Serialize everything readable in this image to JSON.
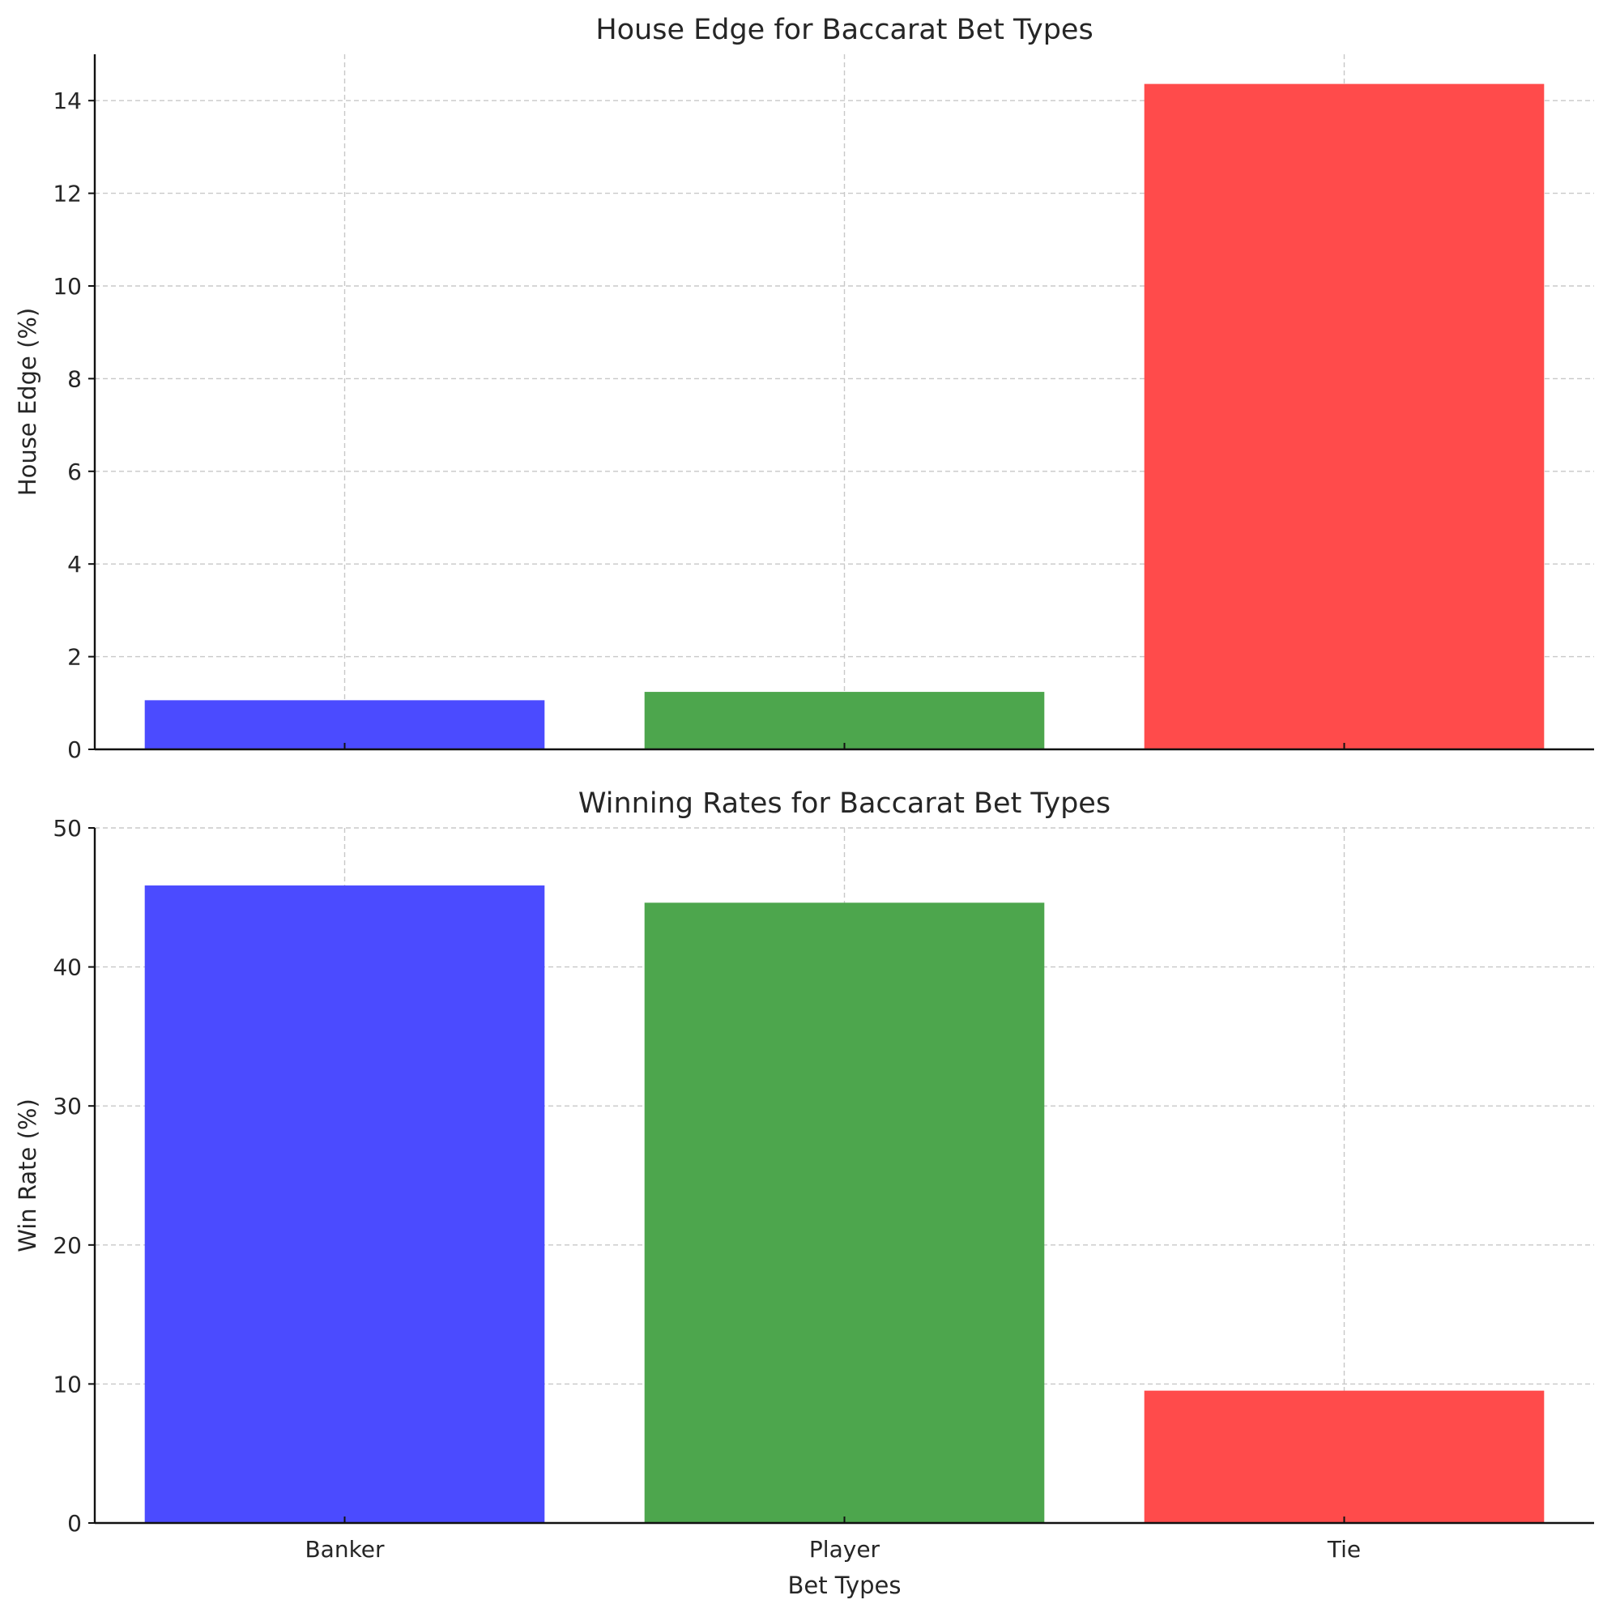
{
  "chart_data": [
    {
      "type": "bar",
      "title": "House Edge for Baccarat Bet Types",
      "xlabel": "",
      "ylabel": "House Edge (%)",
      "categories": [
        "Banker",
        "Player",
        "Tie"
      ],
      "show_x_tick_labels": false,
      "values": [
        1.06,
        1.24,
        14.36
      ],
      "colors": [
        "#4b4bff",
        "#4da64d",
        "#ff4b4b"
      ],
      "ylim": [
        0,
        15
      ],
      "yticks": [
        0,
        2,
        4,
        6,
        8,
        10,
        12,
        14
      ],
      "grid": true
    },
    {
      "type": "bar",
      "title": "Winning Rates for Baccarat Bet Types",
      "xlabel": "Bet Types",
      "ylabel": "Win Rate (%)",
      "categories": [
        "Banker",
        "Player",
        "Tie"
      ],
      "show_x_tick_labels": true,
      "values": [
        45.86,
        44.62,
        9.52
      ],
      "colors": [
        "#4b4bff",
        "#4da64d",
        "#ff4b4b"
      ],
      "ylim": [
        0,
        50
      ],
      "yticks": [
        0,
        10,
        20,
        30,
        40,
        50
      ],
      "grid": true
    }
  ]
}
